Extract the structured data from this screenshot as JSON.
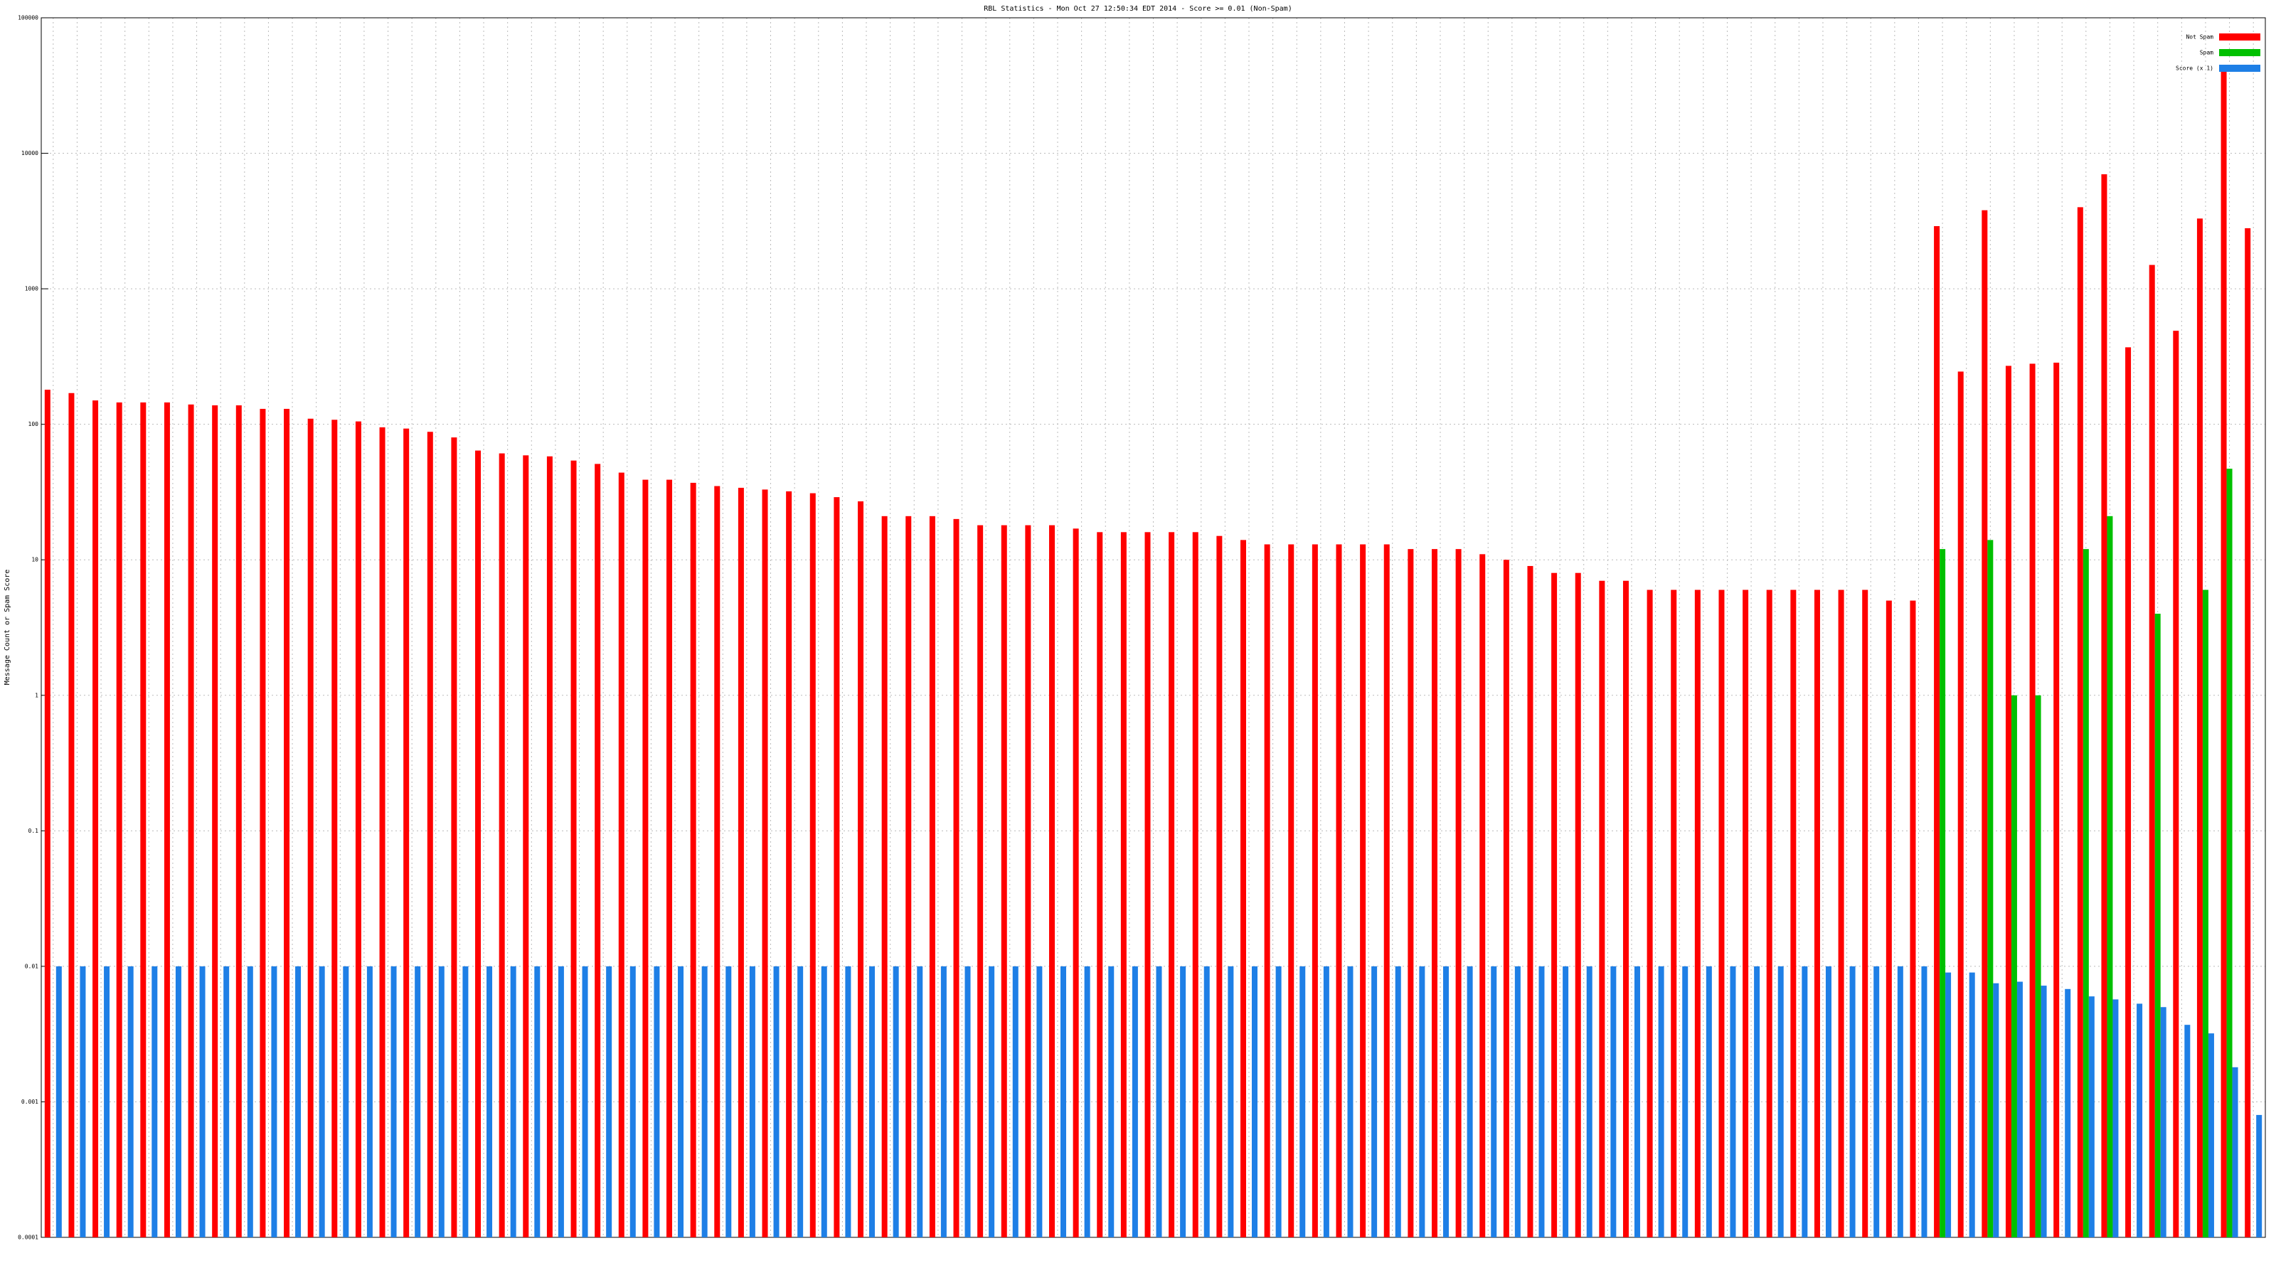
{
  "chart_data": {
    "type": "bar",
    "title": "RBL Statistics - Mon Oct 27 12:50:34 EDT 2014 - Score >= 0.01 (Non-Spam)",
    "ylabel": "Message Count or Spam Score",
    "log_scale": true,
    "grid": true,
    "legend": "upper right",
    "ylim": [
      0.0001,
      100000
    ],
    "yticks": [
      0.0001,
      0.001,
      0.01,
      0.1,
      1,
      10,
      100,
      1000,
      10000,
      100000
    ],
    "categories": [
      null,
      null,
      null,
      null,
      null,
      null,
      null,
      null,
      null,
      null,
      null,
      null,
      null,
      null,
      null,
      null,
      null,
      null,
      null,
      null,
      null,
      null,
      null,
      null,
      null,
      null,
      null,
      null,
      null,
      null,
      null,
      null,
      null,
      null,
      null,
      null,
      null,
      null,
      null,
      null,
      null,
      null,
      null,
      null,
      null,
      null,
      null,
      null,
      null,
      null,
      null,
      null,
      null,
      null,
      null,
      null,
      null,
      null,
      null,
      null,
      null,
      null,
      null,
      null,
      null,
      null,
      null,
      null,
      null,
      null,
      null,
      null,
      null,
      null,
      null,
      null,
      null,
      null,
      null,
      null,
      null,
      null,
      null,
      null,
      null,
      null,
      null,
      null,
      null,
      null,
      null,
      null,
      null
    ],
    "series": [
      {
        "name": "Not Spam",
        "color": "#ff0000",
        "values": [
          180,
          170,
          150,
          145,
          145,
          145,
          140,
          138,
          138,
          130,
          130,
          110,
          108,
          105,
          95,
          93,
          88,
          80,
          64,
          61,
          59,
          58,
          54,
          51,
          44,
          39,
          39,
          37,
          35,
          34,
          33,
          32,
          31,
          29,
          27,
          21,
          21,
          21,
          20,
          18,
          18,
          18,
          18,
          17,
          16,
          16,
          16,
          16,
          16,
          15,
          14,
          13,
          13,
          13,
          13,
          13,
          13,
          12,
          12,
          12,
          11,
          10,
          9,
          8,
          8,
          7,
          7,
          6,
          6,
          6,
          6,
          6,
          6,
          6,
          6,
          6,
          6,
          5,
          5,
          2900,
          245,
          3800,
          270,
          280,
          285,
          4000,
          7000,
          370,
          1500,
          490,
          3300,
          42000,
          2800
        ]
      },
      {
        "name": "Spam",
        "color": "#00c000",
        "values": [
          null,
          null,
          null,
          null,
          null,
          null,
          null,
          null,
          null,
          null,
          null,
          null,
          null,
          null,
          null,
          null,
          null,
          null,
          null,
          null,
          null,
          null,
          null,
          null,
          null,
          null,
          null,
          null,
          null,
          null,
          null,
          null,
          null,
          null,
          null,
          null,
          null,
          null,
          null,
          null,
          null,
          null,
          null,
          null,
          null,
          null,
          null,
          null,
          null,
          null,
          null,
          null,
          null,
          null,
          null,
          null,
          null,
          null,
          null,
          null,
          null,
          null,
          null,
          null,
          null,
          null,
          null,
          null,
          null,
          null,
          null,
          null,
          null,
          null,
          null,
          null,
          null,
          null,
          null,
          12,
          null,
          14,
          1,
          1,
          null,
          12,
          21,
          null,
          4,
          null,
          6,
          47,
          null
        ]
      },
      {
        "name": "Score (x 1)",
        "color": "#1e7fe6",
        "values": [
          0.01,
          0.01,
          0.01,
          0.01,
          0.01,
          0.01,
          0.01,
          0.01,
          0.01,
          0.01,
          0.01,
          0.01,
          0.01,
          0.01,
          0.01,
          0.01,
          0.01,
          0.01,
          0.01,
          0.01,
          0.01,
          0.01,
          0.01,
          0.01,
          0.01,
          0.01,
          0.01,
          0.01,
          0.01,
          0.01,
          0.01,
          0.01,
          0.01,
          0.01,
          0.01,
          0.01,
          0.01,
          0.01,
          0.01,
          0.01,
          0.01,
          0.01,
          0.01,
          0.01,
          0.01,
          0.01,
          0.01,
          0.01,
          0.01,
          0.01,
          0.01,
          0.01,
          0.01,
          0.01,
          0.01,
          0.01,
          0.01,
          0.01,
          0.01,
          0.01,
          0.01,
          0.01,
          0.01,
          0.01,
          0.01,
          0.01,
          0.01,
          0.01,
          0.01,
          0.01,
          0.01,
          0.01,
          0.01,
          0.01,
          0.01,
          0.01,
          0.01,
          0.01,
          0.01,
          0.009,
          0.009,
          0.0075,
          0.0077,
          0.0072,
          0.0068,
          0.006,
          0.0057,
          0.0053,
          0.005,
          0.0037,
          0.0032,
          0.0018,
          0.0008
        ]
      }
    ]
  }
}
